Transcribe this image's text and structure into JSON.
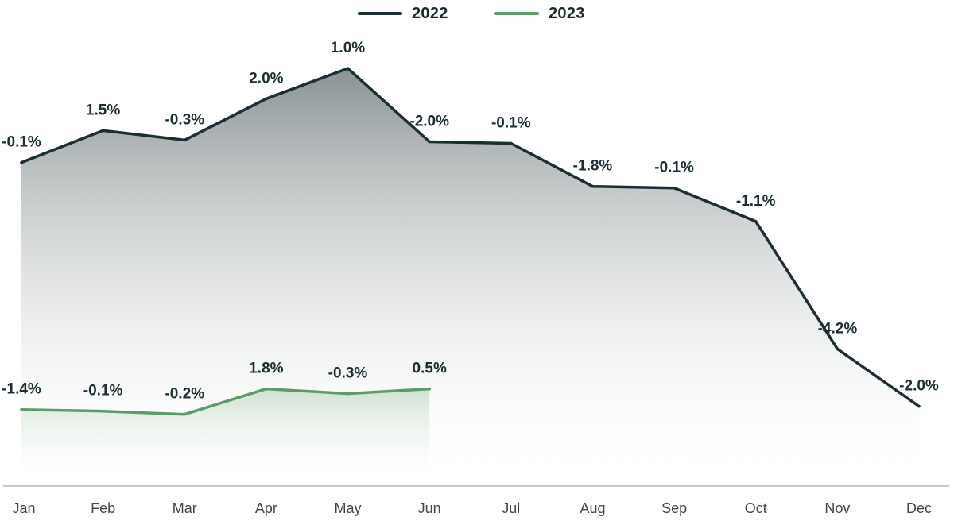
{
  "chart_data": {
    "type": "line",
    "categories": [
      "Jan",
      "Feb",
      "Mar",
      "Apr",
      "May",
      "Jun",
      "Jul",
      "Aug",
      "Sep",
      "Oct",
      "Nov",
      "Dec"
    ],
    "legend_position": "top-center",
    "grid": false,
    "series": [
      {
        "name": "2022",
        "color": "#1b2e33",
        "level": [
          85.3,
          87.3,
          86.7,
          89.3,
          91.2,
          86.6,
          86.5,
          83.8,
          83.7,
          81.6,
          73.6,
          70.0
        ],
        "labels": [
          "-0.1%",
          "1.5%",
          "-0.3%",
          "2.0%",
          "1.0%",
          "-2.0%",
          "-0.1%",
          "-1.8%",
          "-0.1%",
          "-1.1%",
          "-4.2%",
          "-2.0%"
        ]
      },
      {
        "name": "2023",
        "color": "#5f9a6a",
        "level": [
          69.8,
          69.7,
          69.5,
          71.1,
          70.8,
          71.1
        ],
        "labels": [
          "-1.4%",
          "-0.1%",
          "-0.2%",
          "1.8%",
          "-0.3%",
          "0.5%"
        ]
      }
    ],
    "ylim": [
      65.0,
      93.0
    ]
  }
}
